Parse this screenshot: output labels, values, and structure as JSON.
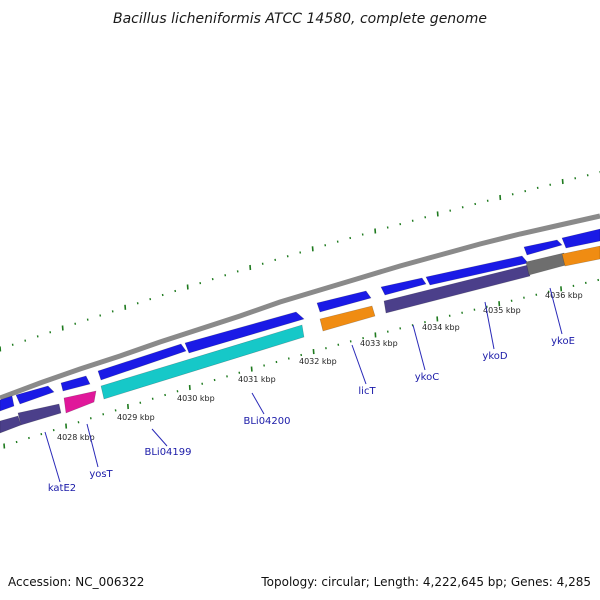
{
  "title": "Bacillus licheniformis ATCC 14580, complete genome",
  "footer": {
    "accession": "Accession: NC_006322",
    "summary": "Topology: circular; Length: 4,222,645 bp; Genes: 4,285"
  },
  "colors": {
    "backbone": "#8a8a8a",
    "tick": "#1e7a1e",
    "forward_gene": "#1a1ae6",
    "reverse_gene": "#4b3f8a",
    "cyan_gene": "#16c8c8",
    "orange_gene": "#f08c12",
    "magenta_gene": "#e0189a",
    "gray_gene": "#6e6e6e",
    "label_line": "#2a2ab8"
  },
  "map": {
    "kbp_labels": [
      "4028 kbp",
      "4029 kbp",
      "4030 kbp",
      "4031 kbp",
      "4032 kbp",
      "4033 kbp",
      "4034 kbp",
      "4035 kbp",
      "4036 kbp"
    ],
    "gene_labels": [
      "katE2",
      "yosT",
      "BLi04199",
      "BLi04200",
      "licT",
      "ykoC",
      "ykoD",
      "ykoE"
    ]
  }
}
